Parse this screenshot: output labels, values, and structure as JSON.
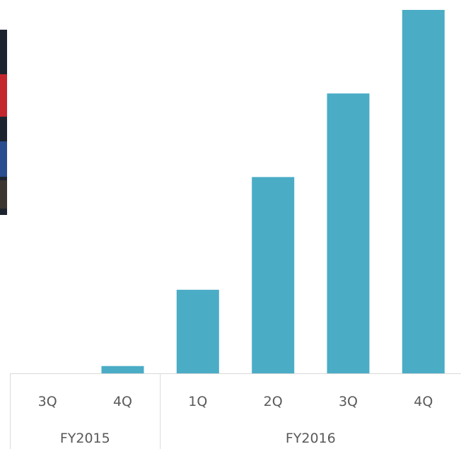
{
  "photo": {
    "icon": "photo-thumbnail-icon",
    "colors": [
      "#1d2430",
      "#c4262e",
      "#2a4d8f"
    ]
  },
  "chart_data": {
    "type": "bar",
    "categories": [
      "3Q",
      "4Q",
      "1Q",
      "2Q",
      "3Q",
      "4Q"
    ],
    "groups": [
      {
        "label": "FY2015",
        "span": 2
      },
      {
        "label": "FY2016",
        "span": 4
      }
    ],
    "values": [
      0,
      2,
      23,
      54,
      77,
      100
    ],
    "ylim": [
      0,
      100
    ],
    "bar_color": "#4bacc6",
    "grid": false,
    "legend": "none"
  }
}
